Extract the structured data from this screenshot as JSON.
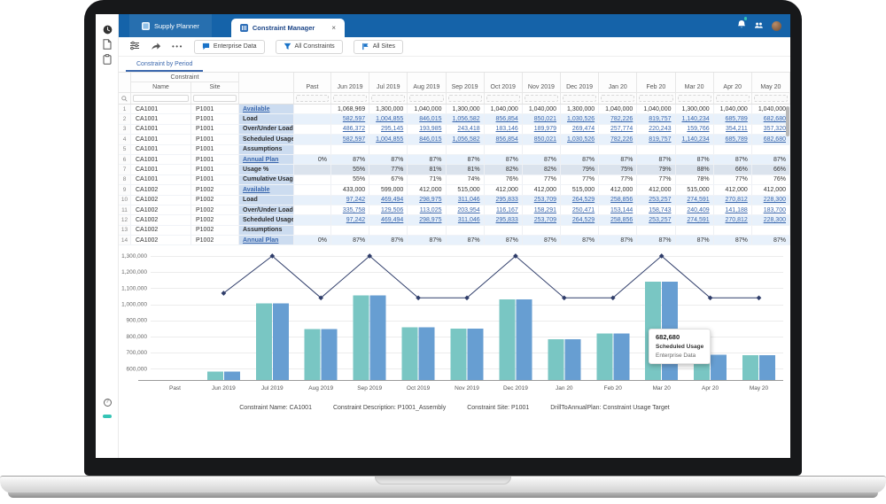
{
  "window": {
    "tabs": [
      {
        "label": "Supply Planner",
        "active": false
      },
      {
        "label": "Constraint Manager",
        "active": true
      }
    ],
    "close_label": "×",
    "right_icons": [
      "notification-bell-icon",
      "team-icon",
      "user-avatar"
    ],
    "topbar_color": "#1563a9"
  },
  "rail_icons": [
    "history-clock-icon",
    "document-icon",
    "clipboard-icon",
    "help-icon",
    "chat-icon"
  ],
  "toolbar": {
    "icons": [
      "tune-icon",
      "share-icon",
      "more-icon"
    ],
    "more_glyph": "•••",
    "buttons": [
      {
        "label": "Enterprise Data",
        "icon": "comment-icon"
      },
      {
        "label": "All Constraints",
        "icon": "filter-funnel-icon"
      },
      {
        "label": "All Sites",
        "icon": "sites-flag-icon"
      }
    ]
  },
  "view_tab": "Constraint by Period",
  "table": {
    "group_header": "Constraint",
    "columns": [
      "Name",
      "Site"
    ],
    "periods": [
      "Past",
      "Jun 2019",
      "Jul 2019",
      "Aug 2019",
      "Sep 2019",
      "Oct 2019",
      "Nov 2019",
      "Dec 2019",
      "Jan 20",
      "Feb 20",
      "Mar 20",
      "Apr 20",
      "May 20"
    ],
    "rows": [
      {
        "num": 1,
        "name": "CA1001",
        "site": "P1001",
        "metric": "Available",
        "metric_link": true,
        "value_links": false,
        "shade": "none",
        "values": [
          "",
          "1,068,969",
          "1,300,000",
          "1,040,000",
          "1,300,000",
          "1,040,000",
          "1,040,000",
          "1,300,000",
          "1,040,000",
          "1,040,000",
          "1,300,000",
          "1,040,000",
          "1,040,000"
        ]
      },
      {
        "num": 2,
        "name": "CA1001",
        "site": "P1001",
        "metric": "Load",
        "metric_link": false,
        "value_links": true,
        "shade": "alt",
        "values": [
          "",
          "582,597",
          "1,004,855",
          "846,015",
          "1,056,582",
          "856,854",
          "850,021",
          "1,030,526",
          "782,226",
          "819,757",
          "1,140,234",
          "685,789",
          "682,680"
        ]
      },
      {
        "num": 3,
        "name": "CA1001",
        "site": "P1001",
        "metric": "Over/Under Load",
        "metric_link": false,
        "value_links": true,
        "shade": "none",
        "values": [
          "",
          "486,372",
          "295,145",
          "193,985",
          "243,418",
          "183,146",
          "189,979",
          "269,474",
          "257,774",
          "220,243",
          "159,766",
          "354,211",
          "357,320"
        ]
      },
      {
        "num": 4,
        "name": "CA1001",
        "site": "P1001",
        "metric": "Scheduled Usage",
        "metric_link": false,
        "value_links": true,
        "shade": "alt",
        "values": [
          "",
          "582,597",
          "1,004,855",
          "846,015",
          "1,056,582",
          "856,854",
          "850,021",
          "1,030,526",
          "782,226",
          "819,757",
          "1,140,234",
          "685,789",
          "682,680"
        ]
      },
      {
        "num": 5,
        "name": "CA1001",
        "site": "P1001",
        "metric": "Assumptions",
        "metric_link": false,
        "value_links": false,
        "shade": "none",
        "values": [
          "",
          "",
          "",
          "",
          "",
          "",
          "",
          "",
          "",
          "",
          "",
          "",
          ""
        ]
      },
      {
        "num": 6,
        "name": "CA1001",
        "site": "P1001",
        "metric": "Annual Plan",
        "metric_link": true,
        "value_links": false,
        "shade": "alt",
        "values": [
          "0%",
          "87%",
          "87%",
          "87%",
          "87%",
          "87%",
          "87%",
          "87%",
          "87%",
          "87%",
          "87%",
          "87%",
          "87%"
        ]
      },
      {
        "num": 7,
        "name": "CA1001",
        "site": "P1001",
        "metric": "Usage %",
        "metric_link": false,
        "value_links": false,
        "shade": "sel",
        "values": [
          "",
          "55%",
          "77%",
          "81%",
          "81%",
          "82%",
          "82%",
          "79%",
          "75%",
          "79%",
          "88%",
          "66%",
          "66%"
        ]
      },
      {
        "num": 8,
        "name": "CA1001",
        "site": "P1001",
        "metric": "Cumulative Usage %",
        "metric_link": false,
        "value_links": false,
        "shade": "none",
        "values": [
          "",
          "55%",
          "67%",
          "71%",
          "74%",
          "76%",
          "77%",
          "77%",
          "77%",
          "77%",
          "78%",
          "77%",
          "76%"
        ]
      },
      {
        "num": 9,
        "name": "CA1002",
        "site": "P1002",
        "metric": "Available",
        "metric_link": true,
        "value_links": false,
        "shade": "none",
        "values": [
          "",
          "433,000",
          "599,000",
          "412,000",
          "515,000",
          "412,000",
          "412,000",
          "515,000",
          "412,000",
          "412,000",
          "515,000",
          "412,000",
          "412,000"
        ]
      },
      {
        "num": 10,
        "name": "CA1002",
        "site": "P1002",
        "metric": "Load",
        "metric_link": false,
        "value_links": true,
        "shade": "alt",
        "values": [
          "",
          "97,242",
          "469,494",
          "298,975",
          "311,046",
          "295,833",
          "253,709",
          "264,529",
          "258,856",
          "253,257",
          "274,591",
          "270,812",
          "228,300"
        ]
      },
      {
        "num": 11,
        "name": "CA1002",
        "site": "P1002",
        "metric": "Over/Under Load",
        "metric_link": false,
        "value_links": true,
        "shade": "none",
        "values": [
          "",
          "335,758",
          "129,506",
          "113,025",
          "203,954",
          "116,167",
          "158,291",
          "250,471",
          "153,144",
          "158,743",
          "240,409",
          "141,188",
          "183,700"
        ]
      },
      {
        "num": 12,
        "name": "CA1002",
        "site": "P1002",
        "metric": "Scheduled Usage",
        "metric_link": false,
        "value_links": true,
        "shade": "alt",
        "values": [
          "",
          "97,242",
          "469,494",
          "298,975",
          "311,046",
          "295,833",
          "253,709",
          "264,529",
          "258,856",
          "253,257",
          "274,591",
          "270,812",
          "228,300"
        ]
      },
      {
        "num": 13,
        "name": "CA1002",
        "site": "P1002",
        "metric": "Assumptions",
        "metric_link": false,
        "value_links": false,
        "shade": "none",
        "values": [
          "",
          "",
          "",
          "",
          "",
          "",
          "",
          "",
          "",
          "",
          "",
          "",
          ""
        ]
      },
      {
        "num": 14,
        "name": "CA1002",
        "site": "P1002",
        "metric": "Annual Plan",
        "metric_link": true,
        "value_links": false,
        "shade": "alt",
        "values": [
          "0%",
          "87%",
          "87%",
          "87%",
          "87%",
          "87%",
          "87%",
          "87%",
          "87%",
          "87%",
          "87%",
          "87%",
          "87%"
        ]
      }
    ]
  },
  "chart_data": {
    "type": "bar",
    "subtype": "grouped bars with line overlay",
    "categories": [
      "Past",
      "Jun 2019",
      "Jul 2019",
      "Aug 2019",
      "Sep 2019",
      "Oct 2019",
      "Nov 2019",
      "Dec 2019",
      "Jan 20",
      "Feb 20",
      "Mar 20",
      "Apr 20",
      "May 20"
    ],
    "series": [
      {
        "name": "Load",
        "type": "bar",
        "color": "#79c6c3",
        "values": [
          null,
          582597,
          1004855,
          846015,
          1056582,
          856854,
          850021,
          1030526,
          782226,
          819757,
          1140234,
          685789,
          682680
        ]
      },
      {
        "name": "Scheduled Usage",
        "type": "bar",
        "color": "#679ed2",
        "values": [
          null,
          582597,
          1004855,
          846015,
          1056582,
          856854,
          850021,
          1030526,
          782226,
          819757,
          1140234,
          685789,
          682680
        ]
      },
      {
        "name": "Available",
        "type": "line",
        "color": "#2f3d6a",
        "values": [
          null,
          1068969,
          1300000,
          1040000,
          1300000,
          1040000,
          1040000,
          1300000,
          1040000,
          1040000,
          1300000,
          1040000,
          1040000
        ]
      }
    ],
    "yticks": [
      600000,
      700000,
      800000,
      900000,
      1000000,
      1100000,
      1200000,
      1300000
    ],
    "ylim": [
      530000,
      1380000
    ],
    "grid": "horizontal",
    "legend": "none",
    "title": "",
    "xlabel": "",
    "ylabel": ""
  },
  "tooltip": {
    "value": "682,680",
    "name": "Scheduled Usage",
    "source": "Enterprise Data"
  },
  "chart_footer": [
    "Constraint Name: CA1001",
    "Constraint Description: P1001_Assembly",
    "Constraint Site: P1001",
    "DrillToAnnualPlan: Constraint Usage Target"
  ]
}
